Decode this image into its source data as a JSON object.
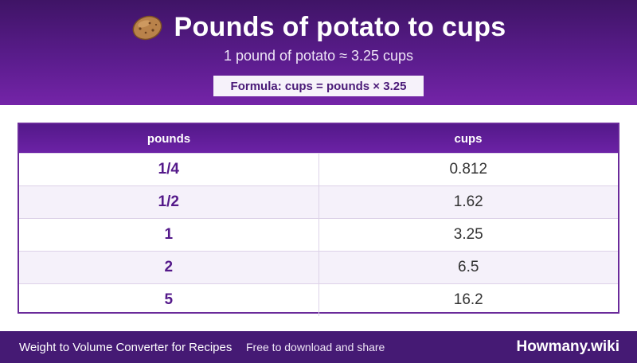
{
  "header": {
    "title": "Pounds of potato to cups",
    "icon": "potato-icon",
    "subtitle": "1 pound of potato ≈ 3.25 cups",
    "formula": "Formula: cups = pounds × 3.25"
  },
  "table": {
    "columns": [
      "pounds",
      "cups"
    ],
    "rows": [
      {
        "pounds": "1/4",
        "cups": "0.812"
      },
      {
        "pounds": "1/2",
        "cups": "1.62"
      },
      {
        "pounds": "1",
        "cups": "3.25"
      },
      {
        "pounds": "2",
        "cups": "6.5"
      },
      {
        "pounds": "5",
        "cups": "16.2"
      }
    ]
  },
  "footer": {
    "left_text": "Weight to Volume Converter for Recipes",
    "middle_text": "Free to download and share",
    "brand": "Howmany.wiki"
  },
  "colors": {
    "primary": "#54198a",
    "footer": "#451a74"
  }
}
